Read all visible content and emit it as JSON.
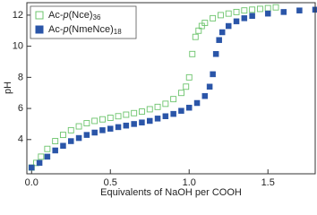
{
  "chart_data": {
    "type": "scatter",
    "xlabel": "Equivalents of NaOH per COOH",
    "ylabel": "pH",
    "xlim": [
      -0.03,
      1.8
    ],
    "ylim": [
      1.8,
      12.8
    ],
    "xticks": [
      {
        "value": 0,
        "label": "0.0"
      },
      0.5,
      {
        "value": 1,
        "label": "1.0"
      },
      1.5
    ],
    "yticks": [
      4,
      6,
      8,
      10,
      12
    ],
    "legend": "upper left",
    "series": [
      {
        "name": "Ac-p(Nce)36",
        "color": "#6cc46c",
        "marker": "open-square",
        "x": [
          0,
          0.03,
          0.06,
          0.1,
          0.15,
          0.2,
          0.25,
          0.3,
          0.35,
          0.4,
          0.45,
          0.5,
          0.55,
          0.6,
          0.65,
          0.7,
          0.75,
          0.8,
          0.85,
          0.9,
          0.95,
          0.98,
          1.0,
          1.02,
          1.04,
          1.06,
          1.08,
          1.1,
          1.15,
          1.2,
          1.25,
          1.3,
          1.35,
          1.4,
          1.45,
          1.5,
          1.55
        ],
        "values": [
          2.2,
          2.5,
          2.9,
          3.4,
          3.9,
          4.3,
          4.6,
          4.85,
          5.05,
          5.2,
          5.3,
          5.4,
          5.5,
          5.6,
          5.7,
          5.8,
          5.95,
          6.1,
          6.3,
          6.6,
          7.0,
          7.4,
          8.0,
          9.5,
          10.6,
          11.0,
          11.3,
          11.5,
          11.8,
          12.0,
          12.1,
          12.2,
          12.3,
          12.35,
          12.4,
          12.45,
          12.5
        ]
      },
      {
        "name": "Ac-p(NmeNce)18",
        "color": "#2a55a8",
        "marker": "filled-square",
        "x": [
          0,
          0.05,
          0.1,
          0.15,
          0.2,
          0.25,
          0.3,
          0.35,
          0.4,
          0.45,
          0.5,
          0.55,
          0.6,
          0.65,
          0.7,
          0.75,
          0.8,
          0.85,
          0.9,
          0.95,
          1.0,
          1.05,
          1.1,
          1.13,
          1.15,
          1.17,
          1.19,
          1.21,
          1.25,
          1.3,
          1.35,
          1.4,
          1.5,
          1.6,
          1.7,
          1.8
        ],
        "values": [
          2.2,
          2.5,
          2.9,
          3.3,
          3.6,
          3.9,
          4.1,
          4.3,
          4.45,
          4.6,
          4.7,
          4.8,
          4.9,
          5.0,
          5.1,
          5.2,
          5.35,
          5.5,
          5.65,
          5.85,
          6.05,
          6.35,
          6.8,
          7.4,
          8.2,
          9.5,
          10.4,
          10.9,
          11.3,
          11.6,
          11.8,
          11.95,
          12.1,
          12.2,
          12.3,
          12.35
        ]
      }
    ]
  }
}
